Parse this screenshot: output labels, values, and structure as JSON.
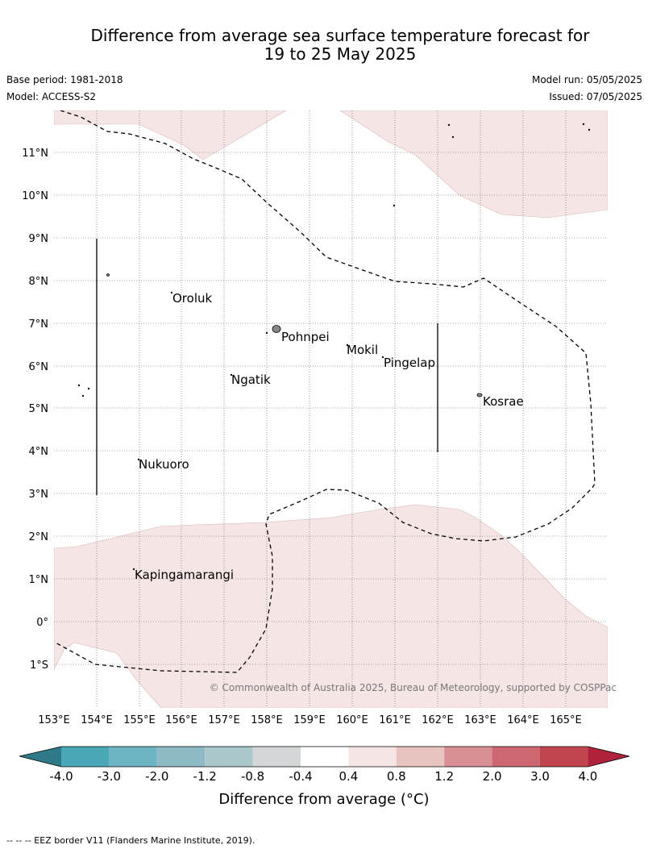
{
  "header": {
    "title_line1": "Difference from average sea surface temperature forecast for",
    "title_line2": "19 to 25 May 2025",
    "base_period": "Base period: 1981-2018",
    "model": "Model: ACCESS-S2",
    "model_run": "Model run: 05/05/2025",
    "issued": "Issued: 07/05/2025"
  },
  "map": {
    "lat_labels": [
      "11°N",
      "10°N",
      "9°N",
      "8°N",
      "7°N",
      "6°N",
      "5°N",
      "4°N",
      "3°N",
      "2°N",
      "1°N",
      "0°",
      "1°S"
    ],
    "lon_labels": [
      "153°E",
      "154°E",
      "155°E",
      "156°E",
      "157°E",
      "158°E",
      "159°E",
      "160°E",
      "161°E",
      "162°E",
      "163°E",
      "164°E",
      "165°E"
    ],
    "places": [
      "Oroluk",
      "Pohnpei",
      "Mokil",
      "Pingelap",
      "Ngatik",
      "Kosrae",
      "Nukuoro",
      "Kapingamarangi"
    ],
    "copyright": "© Commonwealth of Australia 2025, Bureau of Meteorology, supported by COSPPac",
    "anomaly_fill_color": "#f5e6e5",
    "eez_line_color": "#000000"
  },
  "colorbar": {
    "ticks": [
      "-4.0",
      "-3.0",
      "-2.0",
      "-1.2",
      "-0.8",
      "-0.4",
      "0.4",
      "0.8",
      "1.2",
      "2.0",
      "3.0",
      "4.0"
    ],
    "colors": [
      "#2e7a88",
      "#4aa7b7",
      "#6db4c3",
      "#8dbac4",
      "#aac8cb",
      "#d3d7d8",
      "#ffffff",
      "#f5e6e5",
      "#e7c4c0",
      "#d88f96",
      "#cb6870",
      "#c1454f",
      "#b0213a"
    ],
    "label": "Difference from average (°C)"
  },
  "footer": {
    "legend": "--  --  -- EEZ border V11 (Flanders Marine Institute, 2019)."
  }
}
